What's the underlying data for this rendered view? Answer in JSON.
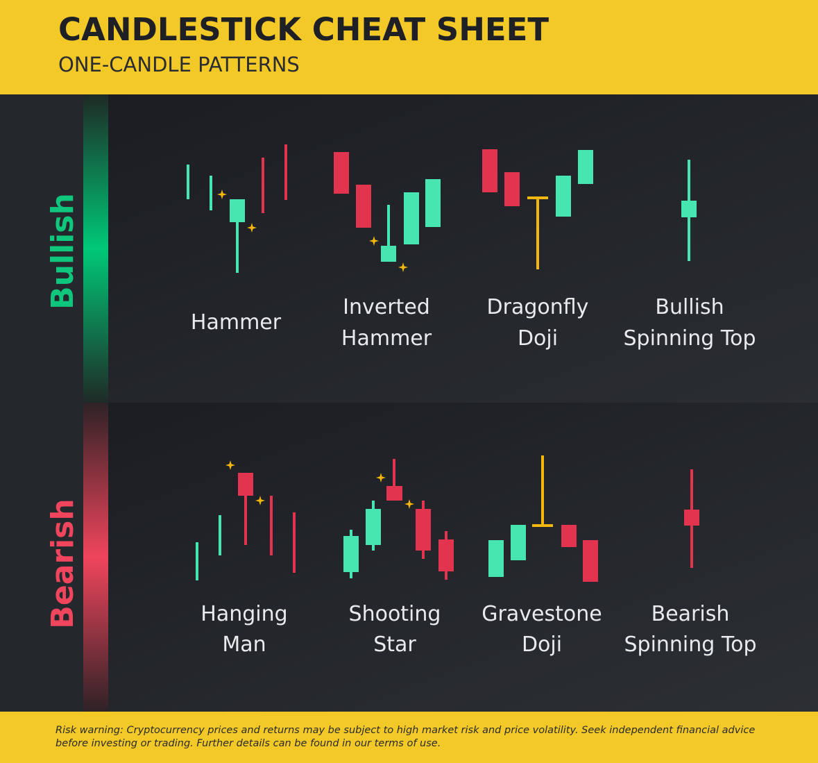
{
  "header": {
    "title": "CANDLESTICK CHEAT SHEET",
    "subtitle": "ONE-CANDLE PATTERNS"
  },
  "sections": [
    {
      "label": "Bullish",
      "patterns": [
        {
          "name": [
            "Hammer"
          ]
        },
        {
          "name": [
            "Inverted",
            "Hammer"
          ]
        },
        {
          "name": [
            "Dragonfly",
            "Doji"
          ]
        },
        {
          "name": [
            "Bullish",
            "Spinning Top"
          ]
        }
      ]
    },
    {
      "label": "Bearish",
      "patterns": [
        {
          "name": [
            "Hanging",
            "Man"
          ]
        },
        {
          "name": [
            "Shooting",
            "Star"
          ]
        },
        {
          "name": [
            "Gravestone",
            "Doji"
          ]
        },
        {
          "name": [
            "Bearish",
            "Spinning Top"
          ]
        }
      ]
    }
  ],
  "footer": {
    "risk_warning": "Risk warning: Cryptocurrency prices and returns may be subject to high market risk and price volatility. Seek independent financial advice before investing or trading. Further details can be found in our terms of use."
  }
}
